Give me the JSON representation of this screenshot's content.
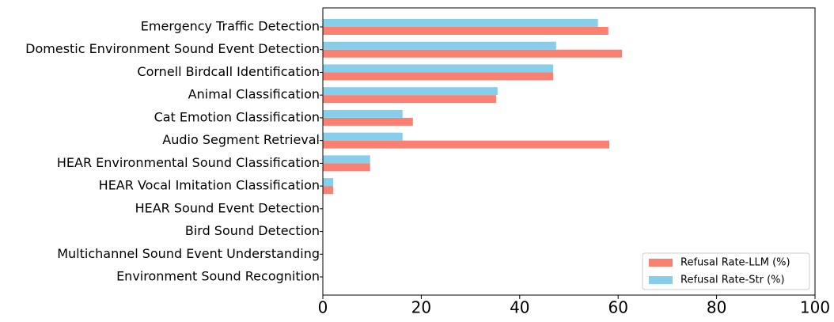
{
  "chart_data": {
    "type": "bar",
    "orientation": "horizontal",
    "categories": [
      "Emergency Traffic Detection",
      "Domestic Environment Sound Event Detection",
      "Cornell Birdcall Identification",
      "Animal Classification",
      "Cat Emotion Classification",
      "Audio Segment Retrieval",
      "HEAR Environmental Sound Classification",
      "HEAR Vocal Imitation Classification",
      "HEAR Sound Event Detection",
      "Bird Sound Detection",
      "Multichannel Sound Event Understanding",
      "Environment Sound Recognition"
    ],
    "series": [
      {
        "name": "Refusal Rate-LLM (%)",
        "color": "#fa8072",
        "values": [
          58.0,
          60.8,
          46.8,
          35.2,
          18.3,
          58.2,
          9.6,
          2.1,
          0,
          0,
          0,
          0
        ]
      },
      {
        "name": "Refusal Rate-Str (%)",
        "color": "#87ceeb",
        "values": [
          55.9,
          47.4,
          46.8,
          35.5,
          16.2,
          16.2,
          9.6,
          2.1,
          0,
          0,
          0,
          0
        ]
      }
    ],
    "xlim": [
      0,
      100
    ],
    "xticks": [
      0,
      20,
      40,
      60,
      80,
      100
    ],
    "legend": "lower right"
  }
}
